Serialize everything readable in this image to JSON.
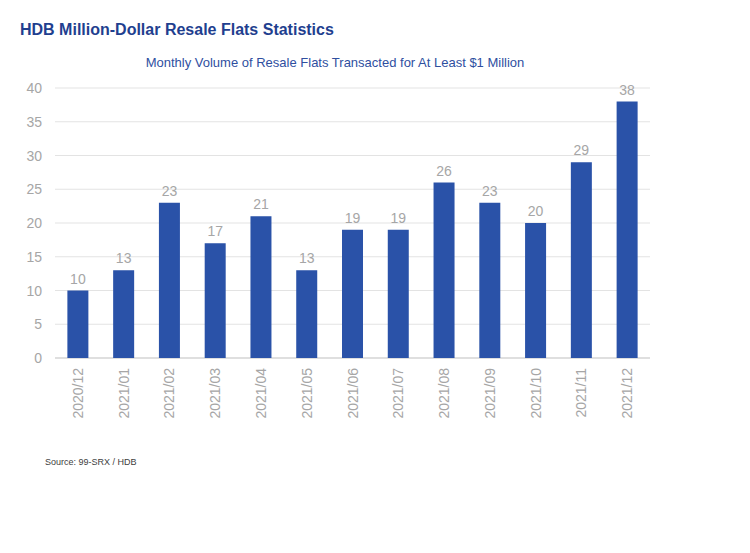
{
  "chart_data": {
    "type": "bar",
    "title": "HDB Million-Dollar Resale Flats Statistics",
    "subtitle": "Monthly Volume of Resale Flats Transacted for At Least $1 Million",
    "categories": [
      "2020/12",
      "2021/01",
      "2021/02",
      "2021/03",
      "2021/04",
      "2021/05",
      "2021/06",
      "2021/07",
      "2021/08",
      "2021/09",
      "2021/10",
      "2021/11",
      "2021/12"
    ],
    "values": [
      10,
      13,
      23,
      17,
      21,
      13,
      19,
      19,
      26,
      23,
      20,
      29,
      38
    ],
    "color": "#2a52a8",
    "ylim": [
      0,
      40
    ],
    "yticks": [
      0,
      5,
      10,
      15,
      20,
      25,
      30,
      35,
      40
    ],
    "grid": true,
    "data_labels": true,
    "annotations": [
      "Source: 99-SRX / HDB"
    ]
  }
}
